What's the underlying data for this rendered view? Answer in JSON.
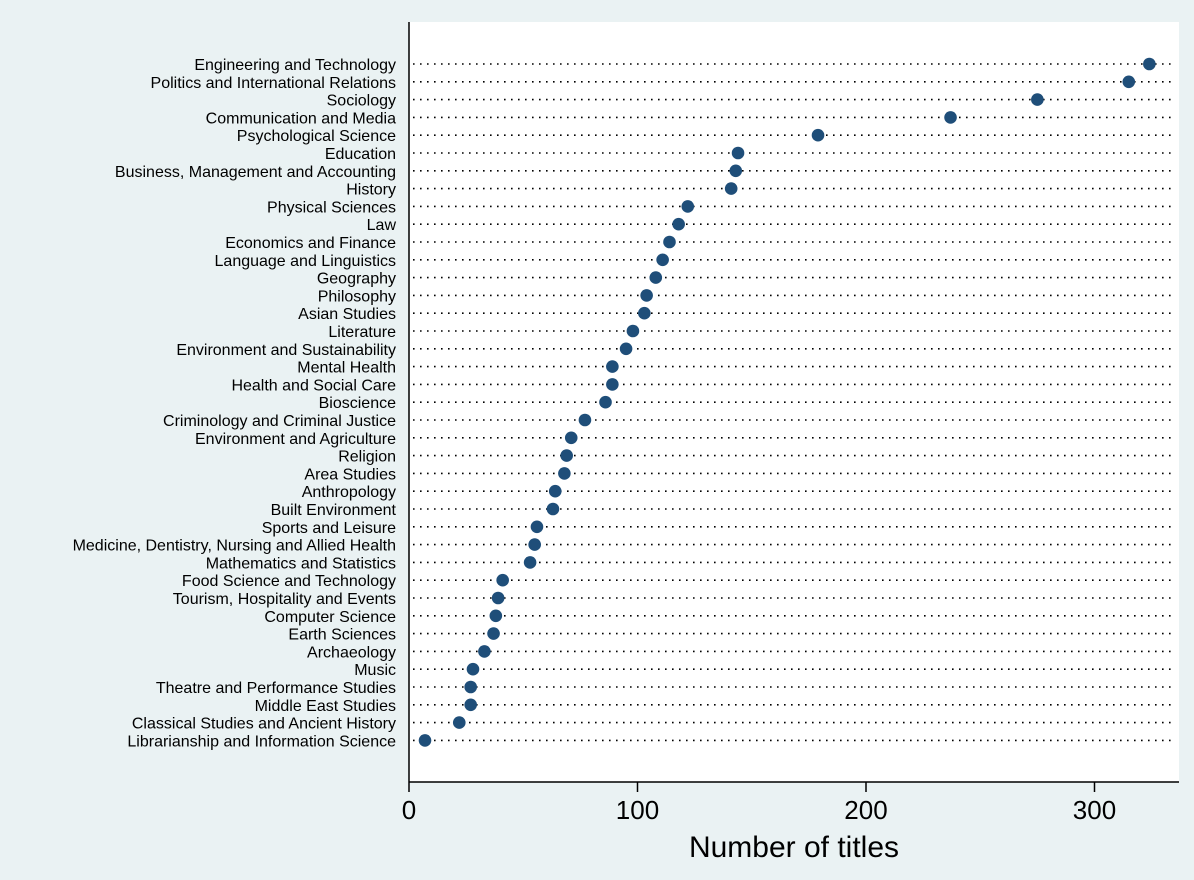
{
  "chart_data": {
    "type": "scatter",
    "orientation": "horizontal-dot-plot",
    "title": "",
    "xlabel": "Number of titles",
    "ylabel": "",
    "xlim": [
      0,
      340
    ],
    "xticks": [
      0,
      100,
      200,
      300
    ],
    "grid": "dotted horizontal guide lines per category",
    "legend": "none",
    "colors": {
      "marker": "#1f4e79",
      "background": "#eaf2f3",
      "plot": "#ffffff"
    },
    "categories": [
      "Engineering and Technology",
      "Politics and International Relations",
      "Sociology",
      "Communication and Media",
      "Psychological Science",
      "Education",
      "Business, Management and Accounting",
      "History",
      "Physical Sciences",
      "Law",
      "Economics and Finance",
      "Language and Linguistics",
      "Geography",
      "Philosophy",
      "Asian Studies",
      "Literature",
      "Environment and Sustainability",
      "Mental Health",
      "Health and Social Care",
      "Bioscience",
      "Criminology and Criminal Justice",
      "Environment and Agriculture",
      "Religion",
      "Area Studies",
      "Anthropology",
      "Built Environment",
      "Sports and Leisure",
      "Medicine, Dentistry, Nursing and Allied Health",
      "Mathematics and Statistics",
      "Food Science and Technology",
      "Tourism, Hospitality and Events",
      "Computer Science",
      "Earth Sciences",
      "Archaeology",
      "Music",
      "Theatre and Performance Studies",
      "Middle East Studies",
      "Classical Studies and Ancient History",
      "Librarianship and Information Science"
    ],
    "values": [
      324,
      315,
      275,
      237,
      179,
      144,
      143,
      141,
      122,
      118,
      114,
      111,
      108,
      104,
      103,
      98,
      95,
      89,
      89,
      86,
      77,
      71,
      69,
      68,
      64,
      63,
      56,
      55,
      53,
      41,
      39,
      38,
      37,
      33,
      28,
      27,
      27,
      22,
      7
    ]
  }
}
